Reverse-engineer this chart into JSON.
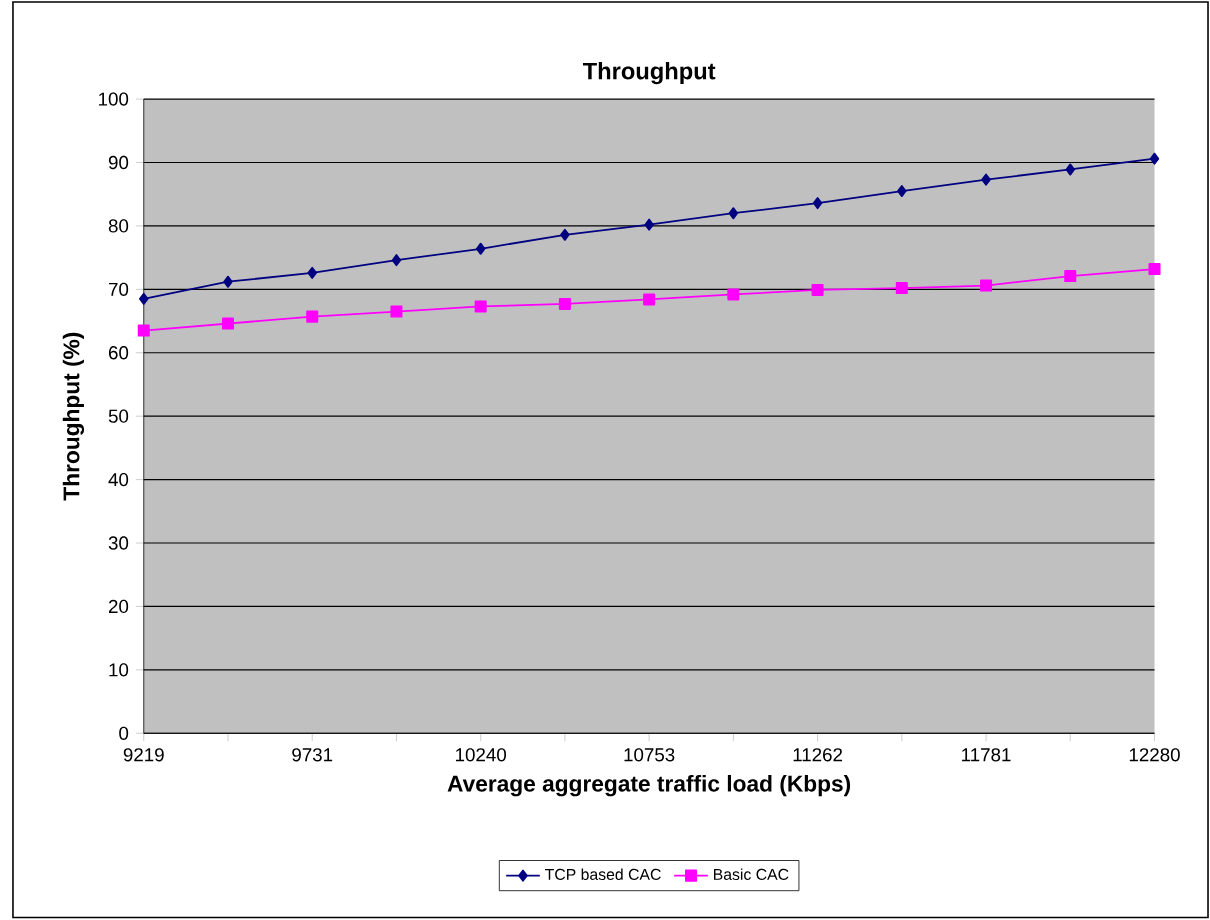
{
  "chart_data": {
    "type": "line",
    "title": "Throughput",
    "xlabel": "Average aggregate traffic load (Kbps)",
    "ylabel": "Throughput (%)",
    "categories": [
      "9219",
      null,
      "9731",
      null,
      "10240",
      null,
      "10753",
      null,
      "11262",
      null,
      "11781",
      null,
      "12280"
    ],
    "series": [
      {
        "name": "TCP based CAC",
        "color": "#000080",
        "marker": "diamond",
        "values": [
          68.5,
          71.2,
          72.6,
          74.6,
          76.4,
          78.6,
          80.2,
          82.0,
          83.6,
          85.5,
          87.3,
          88.9,
          90.6
        ]
      },
      {
        "name": "Basic CAC",
        "color": "#ff00ff",
        "marker": "square",
        "values": [
          63.5,
          64.6,
          65.7,
          66.5,
          67.3,
          67.7,
          68.4,
          69.2,
          69.9,
          70.2,
          70.6,
          72.1,
          73.2
        ]
      }
    ],
    "ylim": [
      0,
      100
    ],
    "yticks": [
      0,
      10,
      20,
      30,
      40,
      50,
      60,
      70,
      80,
      90,
      100
    ],
    "grid": "y",
    "legend": "bottom",
    "line_style": "solid"
  }
}
